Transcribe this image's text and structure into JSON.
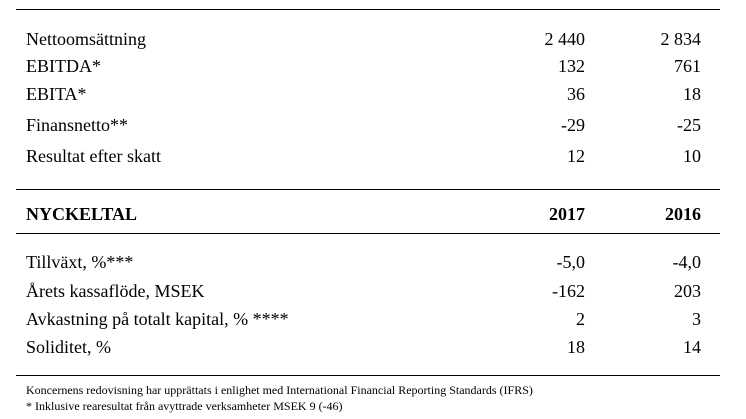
{
  "summary_rows": [
    {
      "label": "Nettoomsättning",
      "v2017": "2 440",
      "v2016": "2 834"
    },
    {
      "label": "EBITDA*",
      "v2017": "132",
      "v2016": "761"
    },
    {
      "label": "EBITA*",
      "v2017": "36",
      "v2016": "18"
    },
    {
      "label": "Finansnetto**",
      "v2017": "-29",
      "v2016": "-25"
    },
    {
      "label": "Resultat efter skatt",
      "v2017": "12",
      "v2016": "10"
    }
  ],
  "key_header": {
    "label": "NYCKELTAL",
    "col1": "2017",
    "col2": "2016"
  },
  "key_rows": [
    {
      "label": "Tillväxt, %***",
      "v2017": "-5,0",
      "v2016": "-4,0"
    },
    {
      "label": "Årets kassaflöde, MSEK",
      "v2017": "-162",
      "v2016": "203"
    },
    {
      "label": "Avkastning på totalt kapital, % ****",
      "v2017": "2",
      "v2016": "3"
    },
    {
      "label": "Soliditet, %",
      "v2017": "18",
      "v2016": "14"
    }
  ],
  "footnotes": [
    "Koncernens redovisning har upprättats i enlighet med International Financial Reporting Standards (IFRS)",
    "* Inklusive rearesultat från avyttrade verksamheter MSEK 9 (-46)"
  ]
}
